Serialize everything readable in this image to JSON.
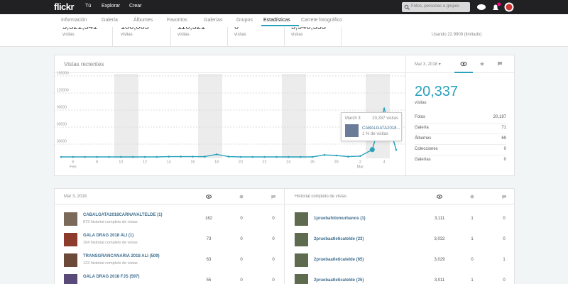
{
  "nav": {
    "logo": "flickr",
    "links": [
      "Tú",
      "Explorar",
      "Crear"
    ],
    "search_placeholder": "Fotos, personas o grupos"
  },
  "tabs": {
    "items": [
      "Información",
      "Galería",
      "Álbumes",
      "Favoritos",
      "Galerías",
      "Grupos",
      "Estadísticas",
      "Carrete fotográfico"
    ],
    "active": 6
  },
  "summary": {
    "items": [
      {
        "value": "3,321,341",
        "label": "visitas"
      },
      {
        "value": "100,063",
        "label": "visitas"
      },
      {
        "value": "116,321",
        "label": "visitas"
      },
      {
        "value": "0",
        "label": "visitas"
      },
      {
        "value": "3,946,333",
        "label": "visitas"
      }
    ],
    "usage": "Usando 22.9908 (limitado)"
  },
  "chart_data": {
    "type": "line",
    "title": "Vistas recientes",
    "categories": [
      null,
      "6",
      null,
      "8",
      null,
      "10",
      null,
      "12",
      null,
      "14",
      null,
      "16",
      null,
      "18",
      null,
      "20",
      null,
      "22",
      null,
      "24",
      null,
      "26",
      null,
      "28",
      null,
      "2",
      null,
      "4",
      null
    ],
    "month_labels": [
      "Feb",
      "Mar"
    ],
    "values": [
      7500,
      7500,
      7500,
      7500,
      7500,
      7500,
      7500,
      7500,
      7500,
      8000,
      8000,
      8000,
      8000,
      12000,
      8000,
      7500,
      7500,
      7500,
      7500,
      7500,
      7500,
      7500,
      11000,
      10000,
      8000,
      9000,
      20337,
      92500,
      20000
    ],
    "color": "#2aa1bb",
    "ylim": [
      0,
      150000
    ],
    "yticks": [
      30000,
      60000,
      90000,
      120000,
      150000
    ],
    "grid": true
  },
  "tooltip": {
    "date": "March 3",
    "views": "20,337 visitas",
    "photo": "CABALGATA2018...",
    "share": "1 % de visitas"
  },
  "day_panel": {
    "date": "Mar 3, 2018",
    "views": "20,337",
    "views_label": "visitas",
    "rows": [
      [
        "Fotos",
        "20,197"
      ],
      [
        "Galería",
        "71"
      ],
      [
        "Álbumes",
        "69"
      ],
      [
        "Colecciones",
        "0"
      ],
      [
        "Galerías",
        "0"
      ]
    ]
  },
  "top_day": {
    "date": "Mar 3, 2018",
    "rows": [
      {
        "title": "CABALGATA2018CARNAVALTELDE (1)",
        "subtitle": "873 historial completo de vistas",
        "views": "162",
        "favs": "0",
        "comments": "0"
      },
      {
        "title": "GALA DRAG 2018 ALI (1)",
        "subtitle": "104 historial completo de vistas",
        "views": "73",
        "favs": "0",
        "comments": "0"
      },
      {
        "title": "TRANSGRANCANARIA 2018 ALI (509)",
        "subtitle": "123 historial completo de vistas",
        "views": "63",
        "favs": "0",
        "comments": "0"
      },
      {
        "title": "GALA DRAG 2018 FJS (597)",
        "subtitle": "",
        "views": "55",
        "favs": "0",
        "comments": "0"
      }
    ]
  },
  "top_all_time": {
    "header": "Historial completo de vistas",
    "rows": [
      {
        "title": "1pruebafotomurbanos (1)",
        "views": "3,111",
        "favs": "1",
        "comments": "0"
      },
      {
        "title": "2pruebaatleticatelde (23)",
        "views": "3,032",
        "favs": "1",
        "comments": "0"
      },
      {
        "title": "2pruebaatleticatelde (65)",
        "views": "3,029",
        "favs": "0",
        "comments": "1"
      },
      {
        "title": "2pruebaatleticatelde (25)",
        "views": "3,011",
        "favs": "1",
        "comments": "0"
      }
    ]
  }
}
